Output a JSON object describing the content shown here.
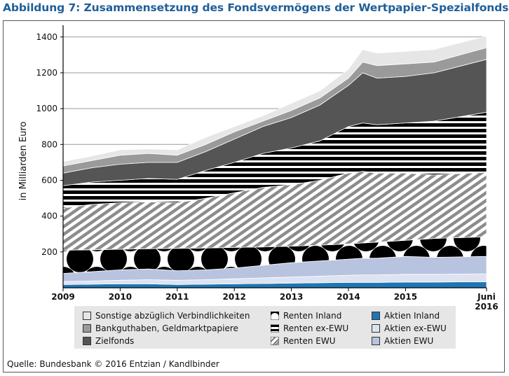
{
  "chart_data": {
    "type": "area",
    "title": "Abbildung 7: Zusammensetzung des Fondsvermögens der Wertpapier-Spezialfonds",
    "ylabel": "in Milliarden Euro",
    "xlabel": "",
    "ylim": [
      0,
      1450
    ],
    "yticks": [
      200,
      400,
      600,
      800,
      1000,
      1200,
      1400
    ],
    "x_ticks": [
      {
        "value": 2009,
        "label": "2009"
      },
      {
        "value": 2010,
        "label": "2010"
      },
      {
        "value": 2011,
        "label": "2011"
      },
      {
        "value": 2012,
        "label": "2012"
      },
      {
        "value": 2013,
        "label": "2013"
      },
      {
        "value": 2014,
        "label": "2014"
      },
      {
        "value": 2015,
        "label": "2015"
      },
      {
        "value": 2016.42,
        "label": "Juni",
        "label2": "2016"
      }
    ],
    "x": [
      2009.0,
      2009.5,
      2010.0,
      2010.5,
      2011.0,
      2011.5,
      2012.0,
      2012.5,
      2013.0,
      2013.5,
      2014.0,
      2014.25,
      2014.5,
      2015.0,
      2015.5,
      2016.42
    ],
    "stack_order": "bottom-to-top",
    "cumulative_top_values": {
      "Aktien Inland": [
        18,
        20,
        22,
        22,
        18,
        20,
        22,
        24,
        26,
        28,
        30,
        30,
        30,
        32,
        32,
        34
      ],
      "Aktien ex-EWU": [
        35,
        38,
        42,
        45,
        42,
        45,
        50,
        55,
        60,
        65,
        70,
        72,
        72,
        75,
        75,
        78
      ],
      "Aktien EWU": [
        80,
        90,
        100,
        105,
        95,
        100,
        110,
        125,
        140,
        150,
        160,
        165,
        165,
        175,
        170,
        175
      ],
      "Renten Inland": [
        210,
        212,
        215,
        218,
        220,
        222,
        225,
        228,
        232,
        238,
        245,
        250,
        255,
        265,
        275,
        285
      ],
      "Renten EWU": [
        445,
        465,
        475,
        480,
        475,
        500,
        530,
        560,
        575,
        600,
        640,
        650,
        640,
        640,
        630,
        645
      ],
      "Renten ex-EWU": [
        570,
        590,
        600,
        610,
        605,
        655,
        700,
        750,
        780,
        820,
        900,
        920,
        910,
        920,
        930,
        980
      ],
      "Zielfonds": [
        640,
        670,
        690,
        700,
        700,
        760,
        830,
        900,
        950,
        1020,
        1130,
        1200,
        1170,
        1180,
        1200,
        1275
      ],
      "Bankguthaben, Geldmarktpapiere": [
        680,
        710,
        740,
        750,
        740,
        800,
        870,
        930,
        990,
        1060,
        1170,
        1260,
        1240,
        1250,
        1260,
        1340
      ],
      "Sonstige abzüglich Verbindlichkeiten": [
        705,
        735,
        770,
        775,
        770,
        840,
        900,
        960,
        1030,
        1100,
        1220,
        1330,
        1310,
        1320,
        1330,
        1405
      ]
    },
    "series": [
      {
        "name": "Aktien Inland"
      },
      {
        "name": "Aktien ex-EWU"
      },
      {
        "name": "Renten EWU"
      },
      {
        "name": "Renten Inland"
      },
      {
        "name": "Renten ex-EWU"
      },
      {
        "name": "Zielfonds"
      },
      {
        "name": "Bankguthaben, Geldmarktpapiere"
      },
      {
        "name": "Sonstige abzüglich Verbindlichkeiten"
      },
      {
        "name": "Aktien EWU"
      }
    ],
    "colors": {
      "Aktien Inland": "#1f76b4",
      "Aktien ex-EWU": "#dde3f1",
      "Aktien EWU": "#b8c3e0",
      "Zielfonds": "#555555",
      "Bankguthaben, Geldmarktpapiere": "#9a9a9a",
      "Sonstige abzüglich Verbindlichkeiten": "#e6e6e6",
      "title": "#1f5f99"
    },
    "grid": true,
    "legend": "bottom",
    "source": "Quelle: Bundesbank © 2016 Entzian / Kandlbinder"
  }
}
